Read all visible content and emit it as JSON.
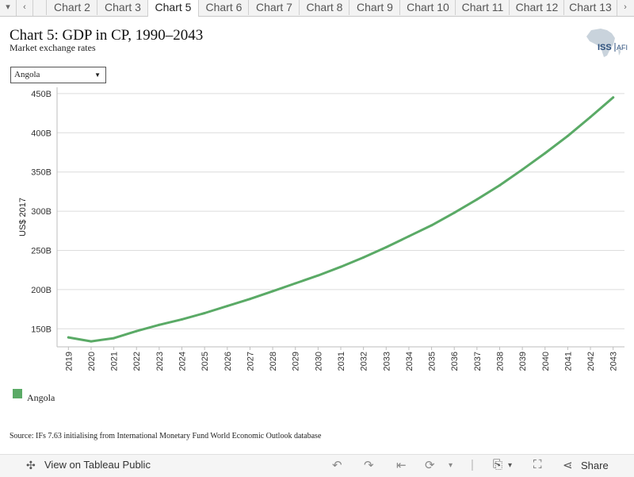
{
  "tabs": {
    "items": [
      "Chart 2",
      "Chart 3",
      "Chart 5",
      "Chart 6",
      "Chart 7",
      "Chart 8",
      "Chart 9",
      "Chart 10",
      "Chart 11",
      "Chart 12",
      "Chart 13"
    ],
    "active": "Chart 5"
  },
  "header": {
    "title": "Chart 5: GDP in CP, 1990–2043",
    "subtitle": "Market exchange rates",
    "logo_text": "ISS AFRICA"
  },
  "filter": {
    "selected": "Angola"
  },
  "legend": {
    "label": "Angola",
    "color": "#5aaa66"
  },
  "source": "Source: IFs 7.63 initialising from International Monetary Fund World Economic Outlook database",
  "footer": {
    "view_label": "View on Tableau Public",
    "share_label": "Share"
  },
  "chart_data": {
    "type": "line",
    "title": "Chart 5: GDP in CP, 1990–2043",
    "ylabel": "US$ 2017",
    "xlabel": "",
    "x": [
      2019,
      2020,
      2021,
      2022,
      2023,
      2024,
      2025,
      2026,
      2027,
      2028,
      2029,
      2030,
      2031,
      2032,
      2033,
      2034,
      2035,
      2036,
      2037,
      2038,
      2039,
      2040,
      2041,
      2042,
      2043
    ],
    "series": [
      {
        "name": "Angola",
        "color": "#5aaa66",
        "values": [
          139,
          134,
          138,
          147,
          155,
          162,
          170,
          179,
          188,
          198,
          208,
          218,
          229,
          241,
          254,
          268,
          282,
          298,
          315,
          333,
          353,
          374,
          396,
          420,
          445
        ]
      }
    ],
    "yticks": [
      "150B",
      "200B",
      "250B",
      "300B",
      "350B",
      "400B",
      "450B"
    ],
    "ytick_values": [
      150,
      200,
      250,
      300,
      350,
      400,
      450
    ],
    "ylim": [
      127,
      458
    ],
    "grid": true,
    "legend_position": "bottom-left"
  }
}
